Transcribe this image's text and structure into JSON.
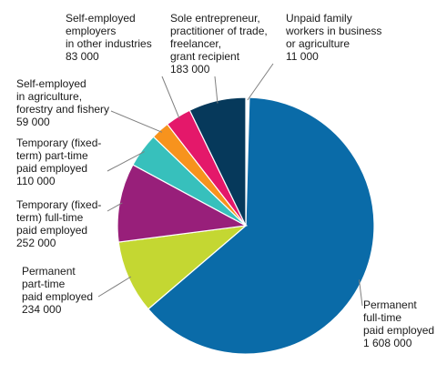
{
  "chart_data": {
    "type": "pie",
    "title": "",
    "start": "12 o'clock",
    "direction": "clockwise",
    "slices": [
      {
        "key": "unpaid",
        "label_lines": [
          "Unpaid family",
          "workers in business",
          "or agriculture"
        ],
        "value_text": "11 000",
        "value": 11000,
        "color": "#ffffff",
        "outline": "#000000"
      },
      {
        "key": "permanent-full",
        "label_lines": [
          "Permanent",
          "full-time",
          "paid employed"
        ],
        "value_text": "1 608 000",
        "value": 1608000,
        "color": "#0a6ba8"
      },
      {
        "key": "permanent-part",
        "label_lines": [
          "Permanent",
          "part-time",
          "paid employed"
        ],
        "value_text": "234 000",
        "value": 234000,
        "color": "#c4d732"
      },
      {
        "key": "temp-full",
        "label_lines": [
          "Temporary (fixed-",
          "term) full-time",
          "paid employed"
        ],
        "value_text": "252 000",
        "value": 252000,
        "color": "#981f7a"
      },
      {
        "key": "temp-part",
        "label_lines": [
          "Temporary (fixed-",
          "term) part-time",
          "paid employed"
        ],
        "value_text": "110 000",
        "value": 110000,
        "color": "#37c0bc"
      },
      {
        "key": "self-agri",
        "label_lines": [
          "Self-employed",
          "in agriculture,",
          "forestry and fishery"
        ],
        "value_text": "59 000",
        "value": 59000,
        "color": "#f7931d"
      },
      {
        "key": "self-employers",
        "label_lines": [
          "Self-employed",
          "employers",
          "in other industries"
        ],
        "value_text": "83 000",
        "value": 83000,
        "color": "#e4186a"
      },
      {
        "key": "sole",
        "label_lines": [
          "Sole entrepreneur,",
          "practitioner of trade,",
          "freelancer,",
          "grant recipient"
        ],
        "value_text": "183 000",
        "value": 183000,
        "color": "#06395b"
      }
    ]
  }
}
